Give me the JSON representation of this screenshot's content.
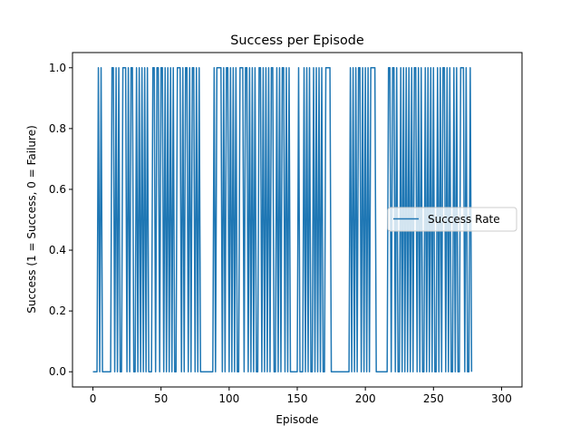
{
  "chart_data": {
    "type": "line",
    "title": "Success per Episode",
    "xlabel": "Episode",
    "ylabel": "Success (1 = Success, 0 = Failure)",
    "xlim": [
      -15,
      315
    ],
    "ylim": [
      -0.05,
      1.05
    ],
    "xticks": [
      0,
      50,
      100,
      150,
      200,
      250,
      300
    ],
    "yticks": [
      0.0,
      0.2,
      0.4,
      0.6,
      0.8,
      1.0
    ],
    "ytick_labels": [
      "0.0",
      "0.2",
      "0.4",
      "0.6",
      "0.8",
      "1.0"
    ],
    "grid": false,
    "legend_position": "center-right",
    "series": [
      {
        "name": "Success Rate",
        "color": "#1f77b4",
        "x_start": 0,
        "values": [
          0,
          0,
          0,
          0,
          1,
          0,
          1,
          0,
          0,
          0,
          0,
          0,
          0,
          0,
          1,
          1,
          0,
          1,
          0,
          1,
          0,
          0,
          1,
          1,
          1,
          0,
          1,
          0,
          1,
          1,
          0,
          0,
          1,
          0,
          1,
          0,
          1,
          0,
          1,
          0,
          1,
          0,
          0,
          0,
          1,
          1,
          0,
          1,
          1,
          0,
          1,
          1,
          0,
          1,
          0,
          1,
          0,
          1,
          0,
          1,
          0,
          0,
          1,
          1,
          1,
          0,
          1,
          0,
          1,
          1,
          0,
          1,
          0,
          1,
          1,
          0,
          1,
          0,
          1,
          0,
          0,
          0,
          0,
          0,
          0,
          0,
          0,
          0,
          0,
          1,
          0,
          1,
          1,
          1,
          1,
          0,
          1,
          0,
          1,
          1,
          0,
          1,
          0,
          1,
          0,
          1,
          0,
          0,
          1,
          1,
          1,
          0,
          1,
          1,
          0,
          1,
          0,
          1,
          0,
          1,
          0,
          0,
          1,
          1,
          0,
          1,
          0,
          1,
          0,
          1,
          0,
          1,
          1,
          0,
          0,
          1,
          0,
          1,
          0,
          1,
          1,
          0,
          1,
          0,
          1,
          0,
          0,
          0,
          0,
          0,
          0,
          1,
          0,
          0,
          0,
          1,
          0,
          1,
          0,
          1,
          0,
          0,
          1,
          0,
          1,
          0,
          1,
          0,
          1,
          0,
          0,
          1,
          1,
          1,
          1,
          0,
          0,
          0,
          0,
          0,
          0,
          0,
          0,
          0,
          0,
          0,
          0,
          0,
          0,
          1,
          0,
          1,
          0,
          1,
          0,
          1,
          1,
          0,
          1,
          0,
          1,
          0,
          1,
          0,
          1,
          1,
          1,
          1,
          0,
          0,
          0,
          0,
          0,
          0,
          0,
          0,
          0,
          1,
          1,
          0,
          1,
          1,
          0,
          1,
          0,
          0,
          1,
          0,
          1,
          0,
          1,
          0,
          1,
          0,
          1,
          0,
          1,
          1,
          0,
          1,
          0,
          1,
          0,
          0,
          1,
          0,
          1,
          0,
          1,
          0,
          1,
          0,
          0,
          1,
          0,
          1,
          0,
          1,
          1,
          0,
          1,
          0,
          1,
          0,
          0,
          1,
          0,
          1,
          0,
          0,
          1,
          1,
          1,
          0,
          1,
          0,
          0,
          1,
          0
        ]
      }
    ]
  }
}
